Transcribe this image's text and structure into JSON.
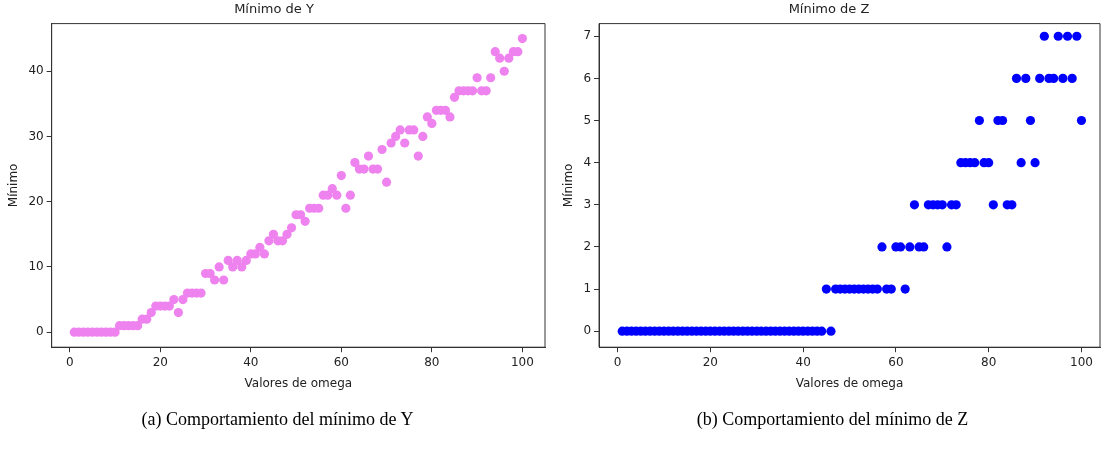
{
  "chart_data": [
    {
      "type": "scatter",
      "title": "Mínimo de Y",
      "xlabel": "Valores de omega",
      "ylabel": "Mínimo",
      "annotations": [
        "(a) Comportamiento del mínimo de Y"
      ],
      "x": [
        1,
        2,
        3,
        4,
        5,
        6,
        7,
        8,
        9,
        10,
        11,
        12,
        13,
        14,
        15,
        16,
        17,
        18,
        19,
        20,
        21,
        22,
        23,
        24,
        25,
        26,
        27,
        28,
        29,
        30,
        31,
        32,
        33,
        34,
        35,
        36,
        37,
        38,
        39,
        40,
        41,
        42,
        43,
        44,
        45,
        46,
        47,
        48,
        49,
        50,
        51,
        52,
        53,
        54,
        55,
        56,
        57,
        58,
        59,
        60,
        61,
        62,
        63,
        64,
        65,
        66,
        67,
        68,
        69,
        70,
        71,
        72,
        73,
        74,
        75,
        76,
        77,
        78,
        79,
        80,
        81,
        82,
        83,
        84,
        85,
        86,
        87,
        88,
        89,
        90,
        91,
        92,
        93,
        94,
        95,
        96,
        97,
        98,
        99,
        100
      ],
      "series": [
        {
          "color": "#ee82ee",
          "values": [
            0,
            0,
            0,
            0,
            0,
            0,
            0,
            0,
            0,
            0,
            1,
            1,
            1,
            1,
            1,
            2,
            2,
            3,
            4,
            4,
            4,
            4,
            5,
            3,
            5,
            6,
            6,
            6,
            6,
            9,
            9,
            8,
            10,
            8,
            11,
            10,
            11,
            10,
            11,
            12,
            12,
            13,
            12,
            14,
            15,
            14,
            14,
            15,
            16,
            18,
            18,
            17,
            19,
            19,
            19,
            21,
            21,
            22,
            21,
            24,
            19,
            21,
            26,
            25,
            25,
            27,
            25,
            25,
            28,
            23,
            29,
            30,
            31,
            29,
            31,
            31,
            27,
            30,
            33,
            32,
            34,
            34,
            34,
            33,
            36,
            37,
            37,
            37,
            37,
            39,
            37,
            37,
            39,
            43,
            42,
            40,
            42,
            43,
            43,
            45
          ]
        }
      ],
      "xlim": [
        -4,
        105
      ],
      "xticks": [
        0,
        20,
        40,
        60,
        80,
        100
      ],
      "ylim": [
        -2.3,
        47.3
      ],
      "yticks": [
        0,
        10,
        20,
        30,
        40
      ],
      "grid": false,
      "legend": false,
      "marker": "circle"
    },
    {
      "type": "scatter",
      "title": "Mínimo de Z",
      "xlabel": "Valores de omega",
      "ylabel": "Mínimo",
      "annotations": [
        "(b) Comportamiento del mínimo de Z"
      ],
      "x": [
        1,
        2,
        3,
        4,
        5,
        6,
        7,
        8,
        9,
        10,
        11,
        12,
        13,
        14,
        15,
        16,
        17,
        18,
        19,
        20,
        21,
        22,
        23,
        24,
        25,
        26,
        27,
        28,
        29,
        30,
        31,
        32,
        33,
        34,
        35,
        36,
        37,
        38,
        39,
        40,
        41,
        42,
        43,
        44,
        45,
        46,
        47,
        48,
        49,
        50,
        51,
        52,
        53,
        54,
        55,
        56,
        57,
        58,
        59,
        60,
        61,
        62,
        63,
        64,
        65,
        66,
        67,
        68,
        69,
        70,
        71,
        72,
        73,
        74,
        75,
        76,
        77,
        78,
        79,
        80,
        81,
        82,
        83,
        84,
        85,
        86,
        87,
        88,
        89,
        90,
        91,
        92,
        93,
        94,
        95,
        96,
        97,
        98,
        99,
        100
      ],
      "series": [
        {
          "color": "#0000ff",
          "values": [
            0,
            0,
            0,
            0,
            0,
            0,
            0,
            0,
            0,
            0,
            0,
            0,
            0,
            0,
            0,
            0,
            0,
            0,
            0,
            0,
            0,
            0,
            0,
            0,
            0,
            0,
            0,
            0,
            0,
            0,
            0,
            0,
            0,
            0,
            0,
            0,
            0,
            0,
            0,
            0,
            0,
            0,
            0,
            0,
            1,
            0,
            1,
            1,
            1,
            1,
            1,
            1,
            1,
            1,
            1,
            1,
            2,
            1,
            1,
            2,
            2,
            1,
            2,
            3,
            2,
            2,
            3,
            3,
            3,
            3,
            2,
            3,
            3,
            4,
            4,
            4,
            4,
            5,
            4,
            4,
            3,
            5,
            5,
            3,
            3,
            6,
            4,
            6,
            5,
            4,
            6,
            7,
            6,
            6,
            7,
            6,
            7,
            6,
            7,
            5
          ]
        }
      ],
      "xlim": [
        -4,
        104
      ],
      "xticks": [
        0,
        20,
        40,
        60,
        80,
        100
      ],
      "ylim": [
        -0.38,
        7.3
      ],
      "yticks": [
        0,
        1,
        2,
        3,
        4,
        5,
        6,
        7
      ],
      "grid": false,
      "legend": false,
      "marker": "circle"
    }
  ]
}
